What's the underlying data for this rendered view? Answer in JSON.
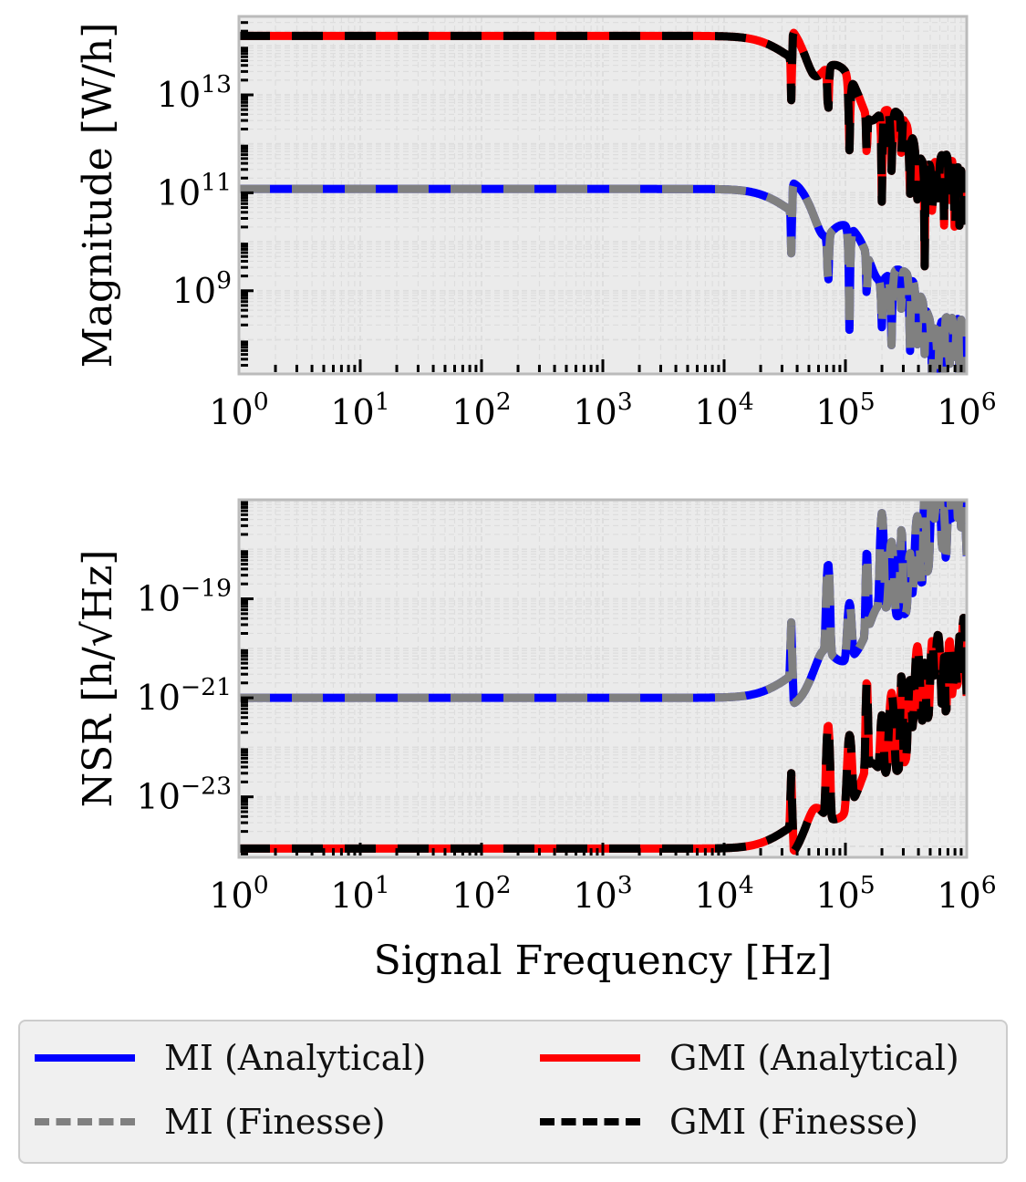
{
  "chart_data": [
    {
      "type": "line",
      "title": "",
      "xlabel": "",
      "ylabel": "Magnitude [W/h]",
      "xscale": "log",
      "yscale": "log",
      "xlim": [
        1,
        1000000
      ],
      "ylim": [
        20000000,
        400000000000000.0
      ],
      "grid": true,
      "x_ticks": [
        {
          "value": 1,
          "label": "10^0"
        },
        {
          "value": 10,
          "label": "10^1"
        },
        {
          "value": 100,
          "label": "10^2"
        },
        {
          "value": 1000,
          "label": "10^3"
        },
        {
          "value": 10000,
          "label": "10^4"
        },
        {
          "value": 100000,
          "label": "10^5"
        },
        {
          "value": 1000000,
          "label": "10^6"
        }
      ],
      "y_ticks": [
        {
          "value": 10000000000000.0,
          "label": "10^13"
        },
        {
          "value": 100000000000.0,
          "label": "10^11"
        },
        {
          "value": 1000000000.0,
          "label": "10^9"
        }
      ],
      "series": [
        {
          "name": "MI (Analytical)",
          "color": "#0000ff",
          "style": "solid",
          "flat": 120000000000.0,
          "corner_hz": 22000,
          "first_notch_hz": 36000,
          "notch_depth": 0.004,
          "slope_decades": 2,
          "seed": 1
        },
        {
          "name": "MI (Finesse)",
          "color": "#808080",
          "style": "dashed",
          "flat": 120000000000.0,
          "corner_hz": 22000,
          "first_notch_hz": 36000,
          "notch_depth": 0.004,
          "slope_decades": 2,
          "seed": 1
        },
        {
          "name": "GMI (Analytical)",
          "color": "#ff0000",
          "style": "solid",
          "flat": 160000000000000.0,
          "corner_hz": 22000,
          "first_notch_hz": 36000,
          "notch_depth": 0.004,
          "slope_decades": 2,
          "seed": 2
        },
        {
          "name": "GMI (Finesse)",
          "color": "#000000",
          "style": "dashed",
          "flat": 160000000000000.0,
          "corner_hz": 22000,
          "first_notch_hz": 36000,
          "notch_depth": 0.004,
          "slope_decades": 2,
          "seed": 2
        }
      ]
    },
    {
      "type": "line",
      "title": "",
      "xlabel": "Signal Frequency [Hz]",
      "ylabel": "NSR [h/√Hz]",
      "xscale": "log",
      "yscale": "log",
      "xlim": [
        1,
        1000000
      ],
      "ylim": [
        6e-25,
        1e-17
      ],
      "grid": true,
      "x_ticks": [
        {
          "value": 1,
          "label": "10^0"
        },
        {
          "value": 10,
          "label": "10^1"
        },
        {
          "value": 100,
          "label": "10^2"
        },
        {
          "value": 1000,
          "label": "10^3"
        },
        {
          "value": 10000,
          "label": "10^4"
        },
        {
          "value": 100000,
          "label": "10^5"
        },
        {
          "value": 1000000,
          "label": "10^6"
        }
      ],
      "y_ticks": [
        {
          "value": 1e-19,
          "label": "10^−19"
        },
        {
          "value": 1e-21,
          "label": "10^−21"
        },
        {
          "value": 1e-23,
          "label": "10^−23"
        }
      ],
      "series": [
        {
          "name": "MI (Analytical)",
          "color": "#0000ff",
          "style": "solid",
          "flat": 1e-21,
          "corner_hz": 22000,
          "first_peak_hz": 36000,
          "peak_height": 250,
          "seed": 1
        },
        {
          "name": "MI (Finesse)",
          "color": "#808080",
          "style": "dashed",
          "flat": 1e-21,
          "corner_hz": 22000,
          "first_peak_hz": 36000,
          "peak_height": 250,
          "seed": 1
        },
        {
          "name": "GMI (Analytical)",
          "color": "#ff0000",
          "style": "solid",
          "flat": 9e-25,
          "corner_hz": 22000,
          "first_peak_hz": 36000,
          "peak_height": 250,
          "seed": 2
        },
        {
          "name": "GMI (Finesse)",
          "color": "#000000",
          "style": "dashed",
          "flat": 9e-25,
          "corner_hz": 22000,
          "first_peak_hz": 36000,
          "peak_height": 250,
          "seed": 2
        }
      ]
    }
  ],
  "legend": {
    "placement": "bottom",
    "entries": [
      {
        "label": "MI (Analytical)",
        "color": "#0000ff",
        "style": "solid"
      },
      {
        "label": "GMI (Analytical)",
        "color": "#ff0000",
        "style": "solid"
      },
      {
        "label": "MI (Finesse)",
        "color": "#808080",
        "style": "dashed"
      },
      {
        "label": "GMI (Finesse)",
        "color": "#000000",
        "style": "dashed"
      }
    ]
  },
  "theme": {
    "axes_background": "#ebebeb",
    "spine_color": "#bbbbbb",
    "grid_color": "#dddddd"
  }
}
